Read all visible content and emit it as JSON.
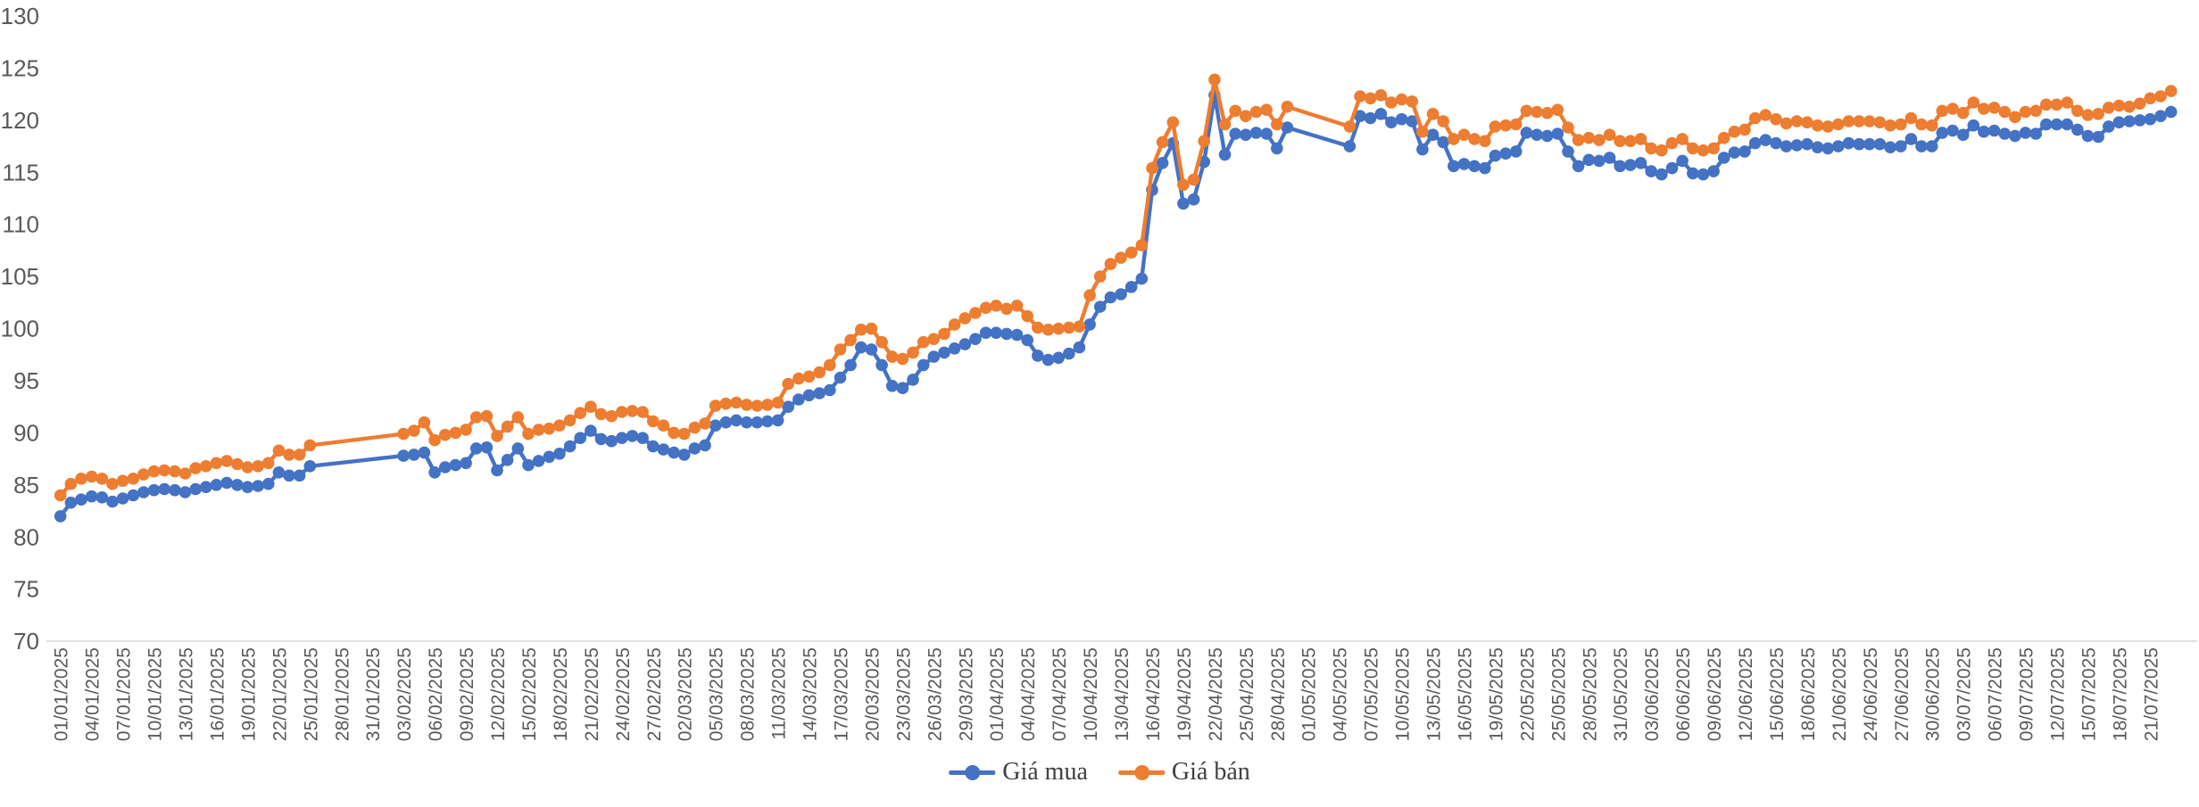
{
  "chart_data": {
    "type": "line",
    "title": "",
    "grid": false,
    "legend_position": "bottom-center",
    "background": "#FFFFFF",
    "axis_text_color": "#595959",
    "axis_line_color": "#D9D9D9",
    "ylim": [
      70,
      130
    ],
    "yticks": [
      70,
      75,
      80,
      85,
      90,
      95,
      100,
      105,
      110,
      115,
      120,
      125,
      130
    ],
    "x_tick_every": 3,
    "x_tick_labels": [
      "01/01/2025",
      "04/01/2025",
      "07/01/2025",
      "10/01/2025",
      "13/01/2025",
      "16/01/2025",
      "19/01/2025",
      "22/01/2025",
      "25/01/2025",
      "28/01/2025",
      "31/01/2025",
      "03/02/2025",
      "06/02/2025",
      "09/02/2025",
      "12/02/2025",
      "15/02/2025",
      "18/02/2025",
      "21/02/2025",
      "24/02/2025",
      "27/02/2025",
      "02/03/2025",
      "05/03/2025",
      "08/03/2025",
      "11/03/2025",
      "14/03/2025",
      "17/03/2025",
      "20/03/2025",
      "23/03/2025",
      "26/03/2025",
      "29/03/2025",
      "01/04/2025",
      "04/04/2025",
      "07/04/2025",
      "10/04/2025",
      "13/04/2025",
      "16/04/2025",
      "19/04/2025",
      "22/04/2025",
      "25/04/2025",
      "28/04/2025",
      "01/05/2025",
      "04/05/2025",
      "07/05/2025",
      "10/05/2025",
      "13/05/2025",
      "16/05/2025",
      "19/05/2025",
      "22/05/2025",
      "25/05/2025",
      "28/05/2025",
      "31/05/2025",
      "03/06/2025",
      "06/06/2025",
      "09/06/2025",
      "12/06/2025",
      "15/06/2025",
      "18/06/2025",
      "21/06/2025",
      "24/06/2025",
      "27/06/2025",
      "30/06/2025",
      "03/07/2025",
      "06/07/2025",
      "09/07/2025",
      "12/07/2025",
      "15/07/2025",
      "18/07/2025",
      "21/07/2025"
    ],
    "series": [
      {
        "name": "Giá mua",
        "color": "#4472C4",
        "values": [
          82.0,
          83.3,
          83.6,
          83.9,
          83.8,
          83.4,
          83.7,
          84.0,
          84.3,
          84.5,
          84.6,
          84.5,
          84.3,
          84.6,
          84.8,
          85.0,
          85.2,
          85.0,
          84.8,
          84.9,
          85.1,
          86.2,
          85.9,
          85.9,
          86.8,
          null,
          null,
          null,
          null,
          null,
          null,
          null,
          null,
          87.8,
          87.9,
          88.1,
          86.2,
          86.7,
          86.9,
          87.1,
          88.5,
          88.6,
          86.4,
          87.4,
          88.5,
          86.9,
          87.3,
          87.7,
          88.0,
          88.7,
          89.5,
          90.2,
          89.4,
          89.2,
          89.5,
          89.7,
          89.5,
          88.7,
          88.4,
          88.1,
          87.9,
          88.5,
          88.8,
          90.7,
          91.0,
          91.2,
          91.0,
          91.0,
          91.1,
          91.2,
          92.5,
          93.2,
          93.6,
          93.8,
          94.1,
          95.3,
          96.5,
          98.2,
          98.0,
          96.5,
          94.5,
          94.3,
          95.1,
          96.5,
          97.3,
          97.7,
          98.1,
          98.5,
          99.0,
          99.6,
          99.6,
          99.5,
          99.4,
          98.9,
          97.4,
          97.0,
          97.2,
          97.6,
          98.2,
          100.4,
          102.1,
          103.0,
          103.3,
          104.0,
          104.8,
          113.3,
          115.9,
          117.8,
          112.0,
          112.4,
          116.0,
          122.4,
          116.7,
          118.7,
          118.6,
          118.8,
          118.7,
          117.3,
          119.3,
          null,
          null,
          null,
          null,
          null,
          117.5,
          120.4,
          120.2,
          120.6,
          119.8,
          120.1,
          119.9,
          117.2,
          118.6,
          117.9,
          115.6,
          115.8,
          115.6,
          115.4,
          116.6,
          116.8,
          117.0,
          118.8,
          118.6,
          118.5,
          118.7,
          117.0,
          115.6,
          116.2,
          116.1,
          116.4,
          115.6,
          115.7,
          115.9,
          115.1,
          114.8,
          115.4,
          116.1,
          114.9,
          114.8,
          115.1,
          116.4,
          116.9,
          117.0,
          117.8,
          118.1,
          117.8,
          117.5,
          117.6,
          117.7,
          117.4,
          117.3,
          117.5,
          117.8,
          117.7,
          117.7,
          117.7,
          117.4,
          117.5,
          118.2,
          117.5,
          117.5,
          118.8,
          119.0,
          118.6,
          119.5,
          118.9,
          119.0,
          118.7,
          118.5,
          118.8,
          118.7,
          119.6,
          119.6,
          119.6,
          119.1,
          118.5,
          118.4,
          119.4,
          119.8,
          119.9,
          120.0,
          120.1,
          120.4,
          120.8
        ]
      },
      {
        "name": "Giá bán",
        "color": "#ED7D31",
        "values": [
          84.0,
          85.1,
          85.6,
          85.8,
          85.6,
          85.1,
          85.4,
          85.6,
          86.0,
          86.3,
          86.4,
          86.3,
          86.1,
          86.6,
          86.8,
          87.1,
          87.3,
          87.0,
          86.7,
          86.8,
          87.1,
          88.3,
          87.9,
          87.9,
          88.8,
          null,
          null,
          null,
          null,
          null,
          null,
          null,
          null,
          89.9,
          90.2,
          91.0,
          89.3,
          89.8,
          90.0,
          90.3,
          91.5,
          91.6,
          89.7,
          90.6,
          91.5,
          89.9,
          90.3,
          90.4,
          90.7,
          91.2,
          91.9,
          92.5,
          91.8,
          91.6,
          92.0,
          92.1,
          92.0,
          91.1,
          90.7,
          90.0,
          89.9,
          90.5,
          90.9,
          92.6,
          92.8,
          92.9,
          92.7,
          92.6,
          92.7,
          92.9,
          94.7,
          95.2,
          95.4,
          95.8,
          96.5,
          98.0,
          98.9,
          99.9,
          100.0,
          98.7,
          97.3,
          97.1,
          97.7,
          98.7,
          99.0,
          99.5,
          100.4,
          101.0,
          101.5,
          102.0,
          102.2,
          101.9,
          102.2,
          101.2,
          100.1,
          99.9,
          100.0,
          100.1,
          100.2,
          103.2,
          105.0,
          106.2,
          106.8,
          107.3,
          108.0,
          115.4,
          117.9,
          119.8,
          113.8,
          114.3,
          118.0,
          123.9,
          119.6,
          120.9,
          120.4,
          120.8,
          121.0,
          119.6,
          121.3,
          null,
          null,
          null,
          null,
          null,
          119.4,
          122.3,
          122.1,
          122.4,
          121.7,
          122.0,
          121.8,
          118.9,
          120.6,
          119.9,
          118.2,
          118.6,
          118.2,
          118.0,
          119.4,
          119.5,
          119.6,
          120.9,
          120.8,
          120.7,
          121.0,
          119.3,
          118.1,
          118.3,
          118.1,
          118.6,
          118.0,
          118.0,
          118.2,
          117.3,
          117.1,
          117.8,
          118.2,
          117.3,
          117.1,
          117.3,
          118.3,
          118.9,
          119.1,
          120.2,
          120.5,
          120.1,
          119.7,
          119.9,
          119.8,
          119.5,
          119.4,
          119.6,
          119.9,
          119.9,
          119.9,
          119.8,
          119.5,
          119.6,
          120.2,
          119.6,
          119.5,
          120.9,
          121.1,
          120.7,
          121.7,
          121.1,
          121.2,
          120.8,
          120.3,
          120.8,
          120.9,
          121.5,
          121.5,
          121.7,
          120.9,
          120.5,
          120.6,
          121.2,
          121.4,
          121.3,
          121.6,
          122.1,
          122.3,
          122.8
        ]
      }
    ]
  }
}
